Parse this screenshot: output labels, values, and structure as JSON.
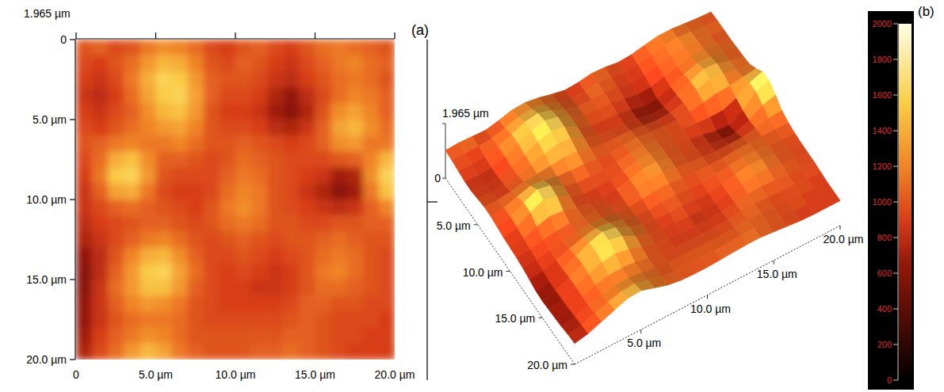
{
  "chart_data": [
    {
      "type": "heatmap",
      "label": "(a)",
      "subtitle": "1.965 µm",
      "xlim": [
        0,
        20
      ],
      "ylim": [
        0,
        20
      ],
      "xticks": [
        0,
        {
          "value": 5,
          "label": "5.0 µm"
        },
        {
          "value": 10,
          "label": "10.0 µm"
        },
        {
          "value": 15,
          "label": "15.0 µm"
        },
        {
          "value": 20,
          "label": "20.0 µm"
        }
      ],
      "yticks": [
        0,
        {
          "value": 5,
          "label": "5.0 µm"
        },
        {
          "value": 10,
          "label": "10.0 µm"
        },
        {
          "value": 15,
          "label": "15.0 µm"
        },
        {
          "value": 20,
          "label": "20.0 µm"
        }
      ],
      "cells": [
        [
          1000,
          1050,
          950,
          1000,
          1150,
          1250,
          1200,
          1100,
          950,
          900,
          1000,
          1050,
          950,
          900,
          1000,
          1100,
          1150,
          1100,
          1050,
          1000
        ],
        [
          950,
          900,
          1000,
          1100,
          1300,
          1450,
          1400,
          1200,
          1000,
          950,
          1050,
          1000,
          900,
          850,
          950,
          1050,
          1150,
          1200,
          1100,
          1050
        ],
        [
          900,
          850,
          950,
          1150,
          1400,
          1600,
          1550,
          1300,
          1050,
          1000,
          1000,
          950,
          850,
          800,
          900,
          1000,
          1100,
          1150,
          1100,
          1000
        ],
        [
          850,
          800,
          900,
          1100,
          1350,
          1550,
          1600,
          1350,
          1050,
          950,
          950,
          900,
          750,
          650,
          800,
          950,
          1100,
          1200,
          1150,
          1050
        ],
        [
          900,
          850,
          950,
          1050,
          1250,
          1450,
          1500,
          1300,
          1000,
          900,
          900,
          850,
          700,
          600,
          750,
          1000,
          1250,
          1350,
          1200,
          1050
        ],
        [
          950,
          900,
          1000,
          1100,
          1200,
          1300,
          1350,
          1200,
          1000,
          950,
          950,
          900,
          800,
          750,
          850,
          1050,
          1350,
          1450,
          1250,
          1100
        ],
        [
          1000,
          1050,
          1150,
          1200,
          1150,
          1150,
          1200,
          1100,
          1000,
          1000,
          1050,
          1000,
          950,
          900,
          950,
          1050,
          1250,
          1300,
          1150,
          1150
        ],
        [
          950,
          1100,
          1400,
          1500,
          1250,
          1050,
          1050,
          1000,
          950,
          1000,
          1100,
          1050,
          1000,
          950,
          950,
          950,
          1000,
          1050,
          1200,
          1450
        ],
        [
          900,
          1150,
          1550,
          1600,
          1300,
          1000,
          950,
          950,
          950,
          1050,
          1150,
          1100,
          1000,
          950,
          900,
          850,
          700,
          750,
          1250,
          1600
        ],
        [
          850,
          1050,
          1350,
          1400,
          1150,
          950,
          900,
          900,
          950,
          1100,
          1200,
          1150,
          1000,
          950,
          850,
          750,
          600,
          700,
          1150,
          1500
        ],
        [
          850,
          950,
          1050,
          1100,
          1050,
          1000,
          950,
          900,
          1000,
          1150,
          1250,
          1150,
          1000,
          950,
          900,
          850,
          800,
          850,
          1050,
          1200
        ],
        [
          800,
          900,
          950,
          1000,
          1050,
          1050,
          1000,
          950,
          1000,
          1100,
          1150,
          1100,
          1000,
          1000,
          950,
          950,
          1000,
          1000,
          1050,
          1050
        ],
        [
          750,
          850,
          950,
          1050,
          1150,
          1200,
          1100,
          1000,
          950,
          1000,
          1050,
          1000,
          950,
          1000,
          1000,
          1050,
          1100,
          1050,
          1000,
          1000
        ],
        [
          650,
          800,
          1000,
          1200,
          1400,
          1450,
          1250,
          1050,
          950,
          950,
          1000,
          950,
          900,
          950,
          1000,
          1100,
          1150,
          1100,
          1000,
          950
        ],
        [
          600,
          800,
          1050,
          1300,
          1550,
          1600,
          1350,
          1100,
          950,
          900,
          950,
          900,
          850,
          900,
          1000,
          1150,
          1200,
          1100,
          1000,
          950
        ],
        [
          600,
          850,
          1100,
          1300,
          1500,
          1500,
          1300,
          1050,
          950,
          900,
          900,
          850,
          850,
          900,
          1000,
          1100,
          1100,
          1050,
          1000,
          950
        ],
        [
          650,
          850,
          1050,
          1200,
          1300,
          1250,
          1150,
          1000,
          950,
          900,
          900,
          900,
          900,
          950,
          1050,
          1050,
          1000,
          1000,
          950,
          950
        ],
        [
          650,
          850,
          1000,
          1100,
          1150,
          1150,
          1100,
          1000,
          950,
          950,
          950,
          950,
          950,
          1000,
          1050,
          1000,
          950,
          950,
          950,
          900
        ],
        [
          700,
          900,
          1050,
          1150,
          1250,
          1200,
          1100,
          1000,
          1000,
          1000,
          1000,
          1000,
          1000,
          1050,
          1050,
          1000,
          950,
          950,
          900,
          900
        ],
        [
          750,
          950,
          1100,
          1300,
          1450,
          1350,
          1150,
          1050,
          1000,
          1000,
          1000,
          1050,
          1050,
          1100,
          1050,
          1000,
          950,
          900,
          900,
          900
        ]
      ]
    },
    {
      "type": "surface",
      "label": "(b)",
      "xlim": [
        0,
        20
      ],
      "ylim": [
        0,
        20
      ],
      "zlim": [
        0,
        1965
      ],
      "xticks": [
        {
          "value": 5,
          "label": "5.0 µm"
        },
        {
          "value": 10,
          "label": "10.0 µm"
        },
        {
          "value": 15,
          "label": "15.0 µm"
        },
        {
          "value": 20,
          "label": "20.0 µm"
        }
      ],
      "yticks": [
        {
          "value": 5,
          "label": "5.0 µm"
        },
        {
          "value": 10,
          "label": "10.0 µm"
        },
        {
          "value": 15,
          "label": "15.0 µm"
        },
        {
          "value": 20,
          "label": "20.0 µm"
        }
      ],
      "zticks": [
        0,
        {
          "value": 1965,
          "label": "1.965 µm"
        }
      ],
      "color_bar": {
        "range": [
          0,
          2000
        ],
        "ticks": [
          0,
          200,
          400,
          600,
          800,
          1000,
          1200,
          1400,
          1600,
          1800,
          2000
        ]
      }
    }
  ]
}
